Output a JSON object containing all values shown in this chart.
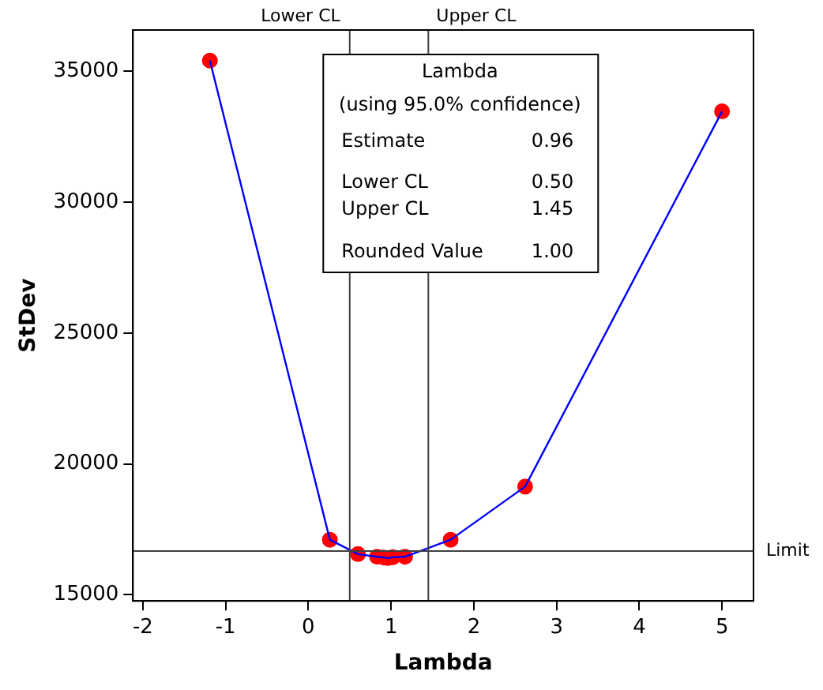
{
  "chart_data": {
    "type": "line",
    "xlabel": "Lambda",
    "ylabel": "StDev",
    "x": [
      -1.19,
      0.26,
      0.6,
      0.83,
      0.91,
      0.96,
      1.02,
      1.17,
      1.72,
      2.62,
      5.0
    ],
    "series": [
      {
        "type": "line",
        "color": "#0000ff",
        "marker": "none",
        "values": [
          35410,
          17100,
          16550,
          16450,
          16420,
          16400,
          16430,
          16450,
          17100,
          19130,
          33470
        ]
      },
      {
        "type": "scatter",
        "color": "#ff0000",
        "marker": "circle",
        "values": [
          35410,
          17100,
          16550,
          16450,
          16420,
          16400,
          16430,
          16450,
          17100,
          19130,
          33470
        ]
      }
    ],
    "xlim": [
      -2.12,
      5.38
    ],
    "xticks": [
      -2,
      -1,
      0,
      1,
      2,
      3,
      4,
      5
    ],
    "ylim": [
      14760,
      36580
    ],
    "yticks": [
      15000,
      20000,
      25000,
      30000,
      35000
    ],
    "grid": false,
    "legend": false,
    "ref_lines": [
      {
        "axis": "x",
        "value": 0.5,
        "label": "Lower CL",
        "color": "#404040"
      },
      {
        "axis": "x",
        "value": 1.45,
        "label": "Upper CL",
        "color": "#404040"
      },
      {
        "axis": "y",
        "value": 16670,
        "label": "Limit",
        "color": "#404040"
      }
    ],
    "annotations": [
      "Lambda",
      "(using 95.0% confidence)",
      "Estimate",
      "0.96",
      "Lower CL",
      "0.50",
      "Upper CL",
      "1.45",
      "Rounded Value",
      "1.00"
    ]
  }
}
